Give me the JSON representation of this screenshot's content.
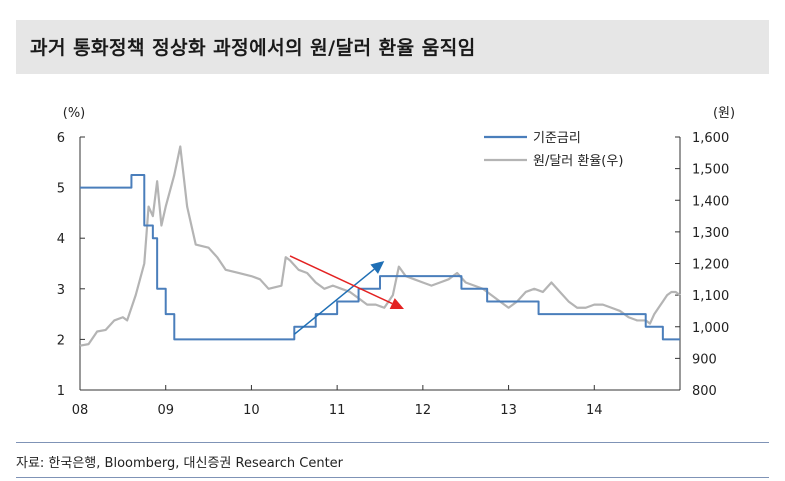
{
  "header": {
    "title": "과거 통화정책 정상화 과정에서의 원/달러 환율 움직임"
  },
  "footer": {
    "source": "자료: 한국은행, Bloomberg, 대신증권 Research Center"
  },
  "chart_data": {
    "type": "line",
    "y_left_unit": "(%)",
    "y_right_unit": "(원)",
    "y_left_ticks": [
      "1",
      "2",
      "3",
      "4",
      "5",
      "6"
    ],
    "y_right_ticks": [
      "800",
      "900",
      "1,000",
      "1,100",
      "1,200",
      "1,300",
      "1,400",
      "1,500",
      "1,600"
    ],
    "x_ticks": [
      "08",
      "09",
      "10",
      "11",
      "12",
      "13",
      "14"
    ],
    "ylim_left": [
      1,
      6
    ],
    "ylim_right": [
      800,
      1600
    ],
    "xlim": [
      2008.0,
      2015.0
    ],
    "legend_position": "top-right",
    "series": [
      {
        "name": "기준금리",
        "axis": "left",
        "color": "#4a7ebb",
        "step": true,
        "points": [
          [
            2008.0,
            5.0
          ],
          [
            2008.6,
            5.25
          ],
          [
            2008.75,
            4.25
          ],
          [
            2008.85,
            4.0
          ],
          [
            2008.9,
            3.0
          ],
          [
            2009.0,
            2.5
          ],
          [
            2009.1,
            2.0
          ],
          [
            2010.5,
            2.25
          ],
          [
            2010.75,
            2.5
          ],
          [
            2011.0,
            2.75
          ],
          [
            2011.25,
            3.0
          ],
          [
            2011.5,
            3.25
          ],
          [
            2012.45,
            3.0
          ],
          [
            2012.75,
            2.75
          ],
          [
            2013.35,
            2.5
          ],
          [
            2014.6,
            2.25
          ],
          [
            2014.8,
            2.0
          ],
          [
            2015.0,
            2.0
          ]
        ]
      },
      {
        "name": "원/달러 환율(우)",
        "axis": "right",
        "color": "#b4b4b4",
        "step": false,
        "points": [
          [
            2008.0,
            940
          ],
          [
            2008.1,
            945
          ],
          [
            2008.2,
            985
          ],
          [
            2008.3,
            990
          ],
          [
            2008.4,
            1020
          ],
          [
            2008.5,
            1030
          ],
          [
            2008.55,
            1020
          ],
          [
            2008.65,
            1100
          ],
          [
            2008.75,
            1200
          ],
          [
            2008.8,
            1380
          ],
          [
            2008.85,
            1350
          ],
          [
            2008.9,
            1460
          ],
          [
            2008.95,
            1320
          ],
          [
            2009.0,
            1380
          ],
          [
            2009.1,
            1480
          ],
          [
            2009.17,
            1570
          ],
          [
            2009.25,
            1380
          ],
          [
            2009.35,
            1260
          ],
          [
            2009.5,
            1250
          ],
          [
            2009.6,
            1220
          ],
          [
            2009.7,
            1180
          ],
          [
            2009.85,
            1170
          ],
          [
            2010.0,
            1160
          ],
          [
            2010.1,
            1150
          ],
          [
            2010.2,
            1120
          ],
          [
            2010.35,
            1130
          ],
          [
            2010.4,
            1220
          ],
          [
            2010.45,
            1210
          ],
          [
            2010.55,
            1180
          ],
          [
            2010.65,
            1170
          ],
          [
            2010.75,
            1140
          ],
          [
            2010.85,
            1120
          ],
          [
            2010.95,
            1130
          ],
          [
            2011.05,
            1120
          ],
          [
            2011.15,
            1110
          ],
          [
            2011.25,
            1090
          ],
          [
            2011.35,
            1070
          ],
          [
            2011.45,
            1070
          ],
          [
            2011.55,
            1060
          ],
          [
            2011.6,
            1080
          ],
          [
            2011.65,
            1100
          ],
          [
            2011.72,
            1190
          ],
          [
            2011.8,
            1160
          ],
          [
            2011.9,
            1150
          ],
          [
            2012.0,
            1140
          ],
          [
            2012.1,
            1130
          ],
          [
            2012.2,
            1140
          ],
          [
            2012.3,
            1150
          ],
          [
            2012.4,
            1170
          ],
          [
            2012.5,
            1140
          ],
          [
            2012.6,
            1130
          ],
          [
            2012.7,
            1120
          ],
          [
            2012.8,
            1100
          ],
          [
            2012.9,
            1080
          ],
          [
            2013.0,
            1060
          ],
          [
            2013.1,
            1080
          ],
          [
            2013.2,
            1110
          ],
          [
            2013.3,
            1120
          ],
          [
            2013.4,
            1110
          ],
          [
            2013.5,
            1140
          ],
          [
            2013.6,
            1110
          ],
          [
            2013.7,
            1080
          ],
          [
            2013.8,
            1060
          ],
          [
            2013.9,
            1060
          ],
          [
            2014.0,
            1070
          ],
          [
            2014.1,
            1070
          ],
          [
            2014.2,
            1060
          ],
          [
            2014.3,
            1050
          ],
          [
            2014.4,
            1030
          ],
          [
            2014.5,
            1020
          ],
          [
            2014.6,
            1020
          ],
          [
            2014.65,
            1010
          ],
          [
            2014.7,
            1040
          ],
          [
            2014.75,
            1060
          ],
          [
            2014.8,
            1080
          ],
          [
            2014.85,
            1100
          ],
          [
            2014.9,
            1110
          ],
          [
            2014.95,
            1110
          ],
          [
            2015.0,
            1100
          ]
        ]
      }
    ],
    "annotations": [
      {
        "kind": "arrow",
        "color": "#1f6fb5",
        "from": [
          2010.5,
          2.1
        ],
        "to": [
          2011.55,
          3.55
        ]
      },
      {
        "kind": "arrow",
        "color": "#e32222",
        "from": [
          2010.45,
          3.65
        ],
        "to": [
          2011.78,
          2.6
        ]
      }
    ]
  }
}
